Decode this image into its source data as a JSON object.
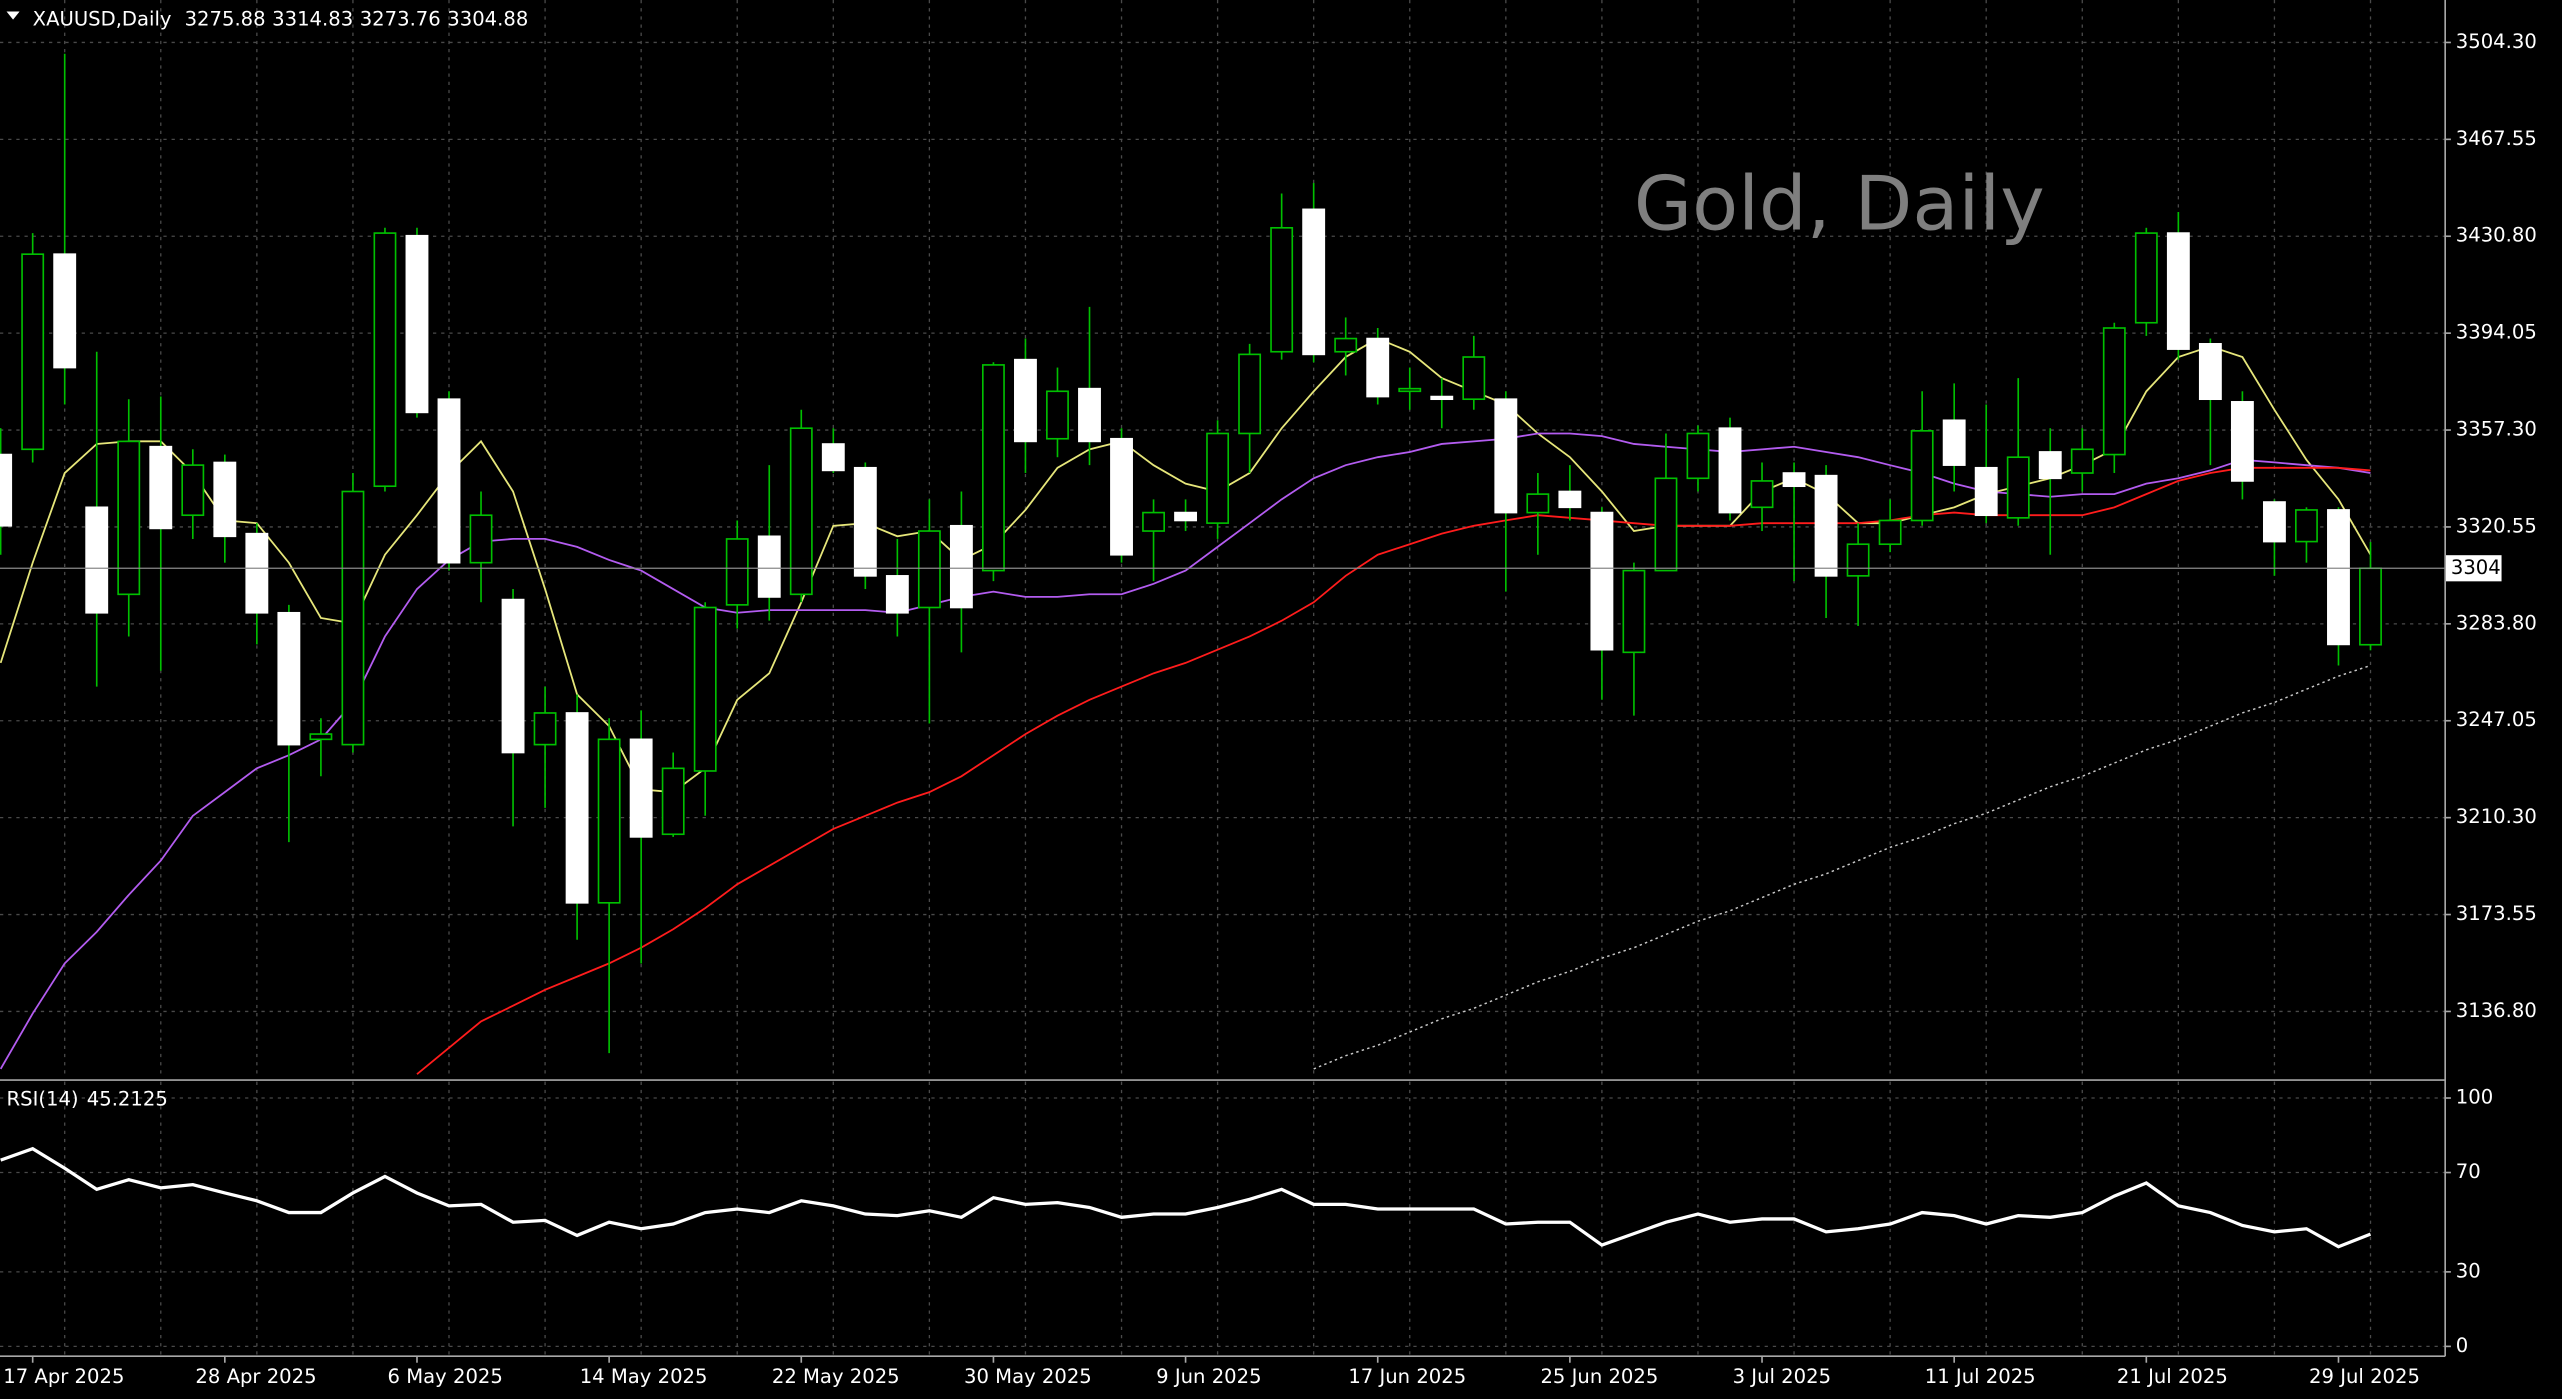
{
  "chart_data": [
    {
      "type": "candlestick",
      "title": "XAUUSD,Daily",
      "watermark": "Gold, Daily",
      "categories": [
        null,
        "17 Apr 2025",
        null,
        null,
        null,
        null,
        null,
        "28 Apr 2025",
        null,
        null,
        null,
        null,
        null,
        "6 May 2025",
        null,
        null,
        null,
        null,
        null,
        "14 May 2025",
        null,
        null,
        null,
        null,
        null,
        "22 May 2025",
        null,
        null,
        null,
        null,
        null,
        "30 May 2025",
        null,
        null,
        null,
        null,
        null,
        "9 Jun 2025",
        null,
        null,
        null,
        null,
        null,
        "17 Jun 2025",
        null,
        null,
        null,
        null,
        null,
        "25 Jun 2025",
        null,
        null,
        null,
        null,
        null,
        "3 Jul 2025",
        null,
        null,
        null,
        null,
        null,
        "11 Jul 2025",
        null,
        null,
        null,
        null,
        null,
        "21 Jul 2025",
        null,
        null,
        null,
        null,
        null,
        "29 Jul 2025",
        null
      ],
      "open": [
        3348,
        3350,
        3424,
        3328,
        3295,
        3351,
        3325,
        3345,
        3318,
        3288,
        3240,
        3238,
        3336,
        3431,
        3369,
        3307,
        3293,
        3238,
        3250,
        3178,
        3240,
        3204,
        3228,
        3291,
        3317,
        3295,
        3352,
        3343,
        3302,
        3290,
        3321,
        3304,
        3384,
        3354,
        3373,
        3354,
        3319,
        3326,
        3322,
        3356,
        3387,
        3441,
        3387,
        3392,
        3372,
        3370,
        3369,
        3369,
        3326,
        3334,
        3326,
        3273,
        3304,
        3339,
        3358,
        3328,
        3341,
        3340,
        3302,
        3314,
        3323,
        3361,
        3343,
        3324,
        3349,
        3341,
        3348,
        3398,
        3432,
        3390,
        3368,
        3330,
        3315,
        3327,
        3275.88
      ],
      "high": [
        3358,
        3432,
        3500,
        3387,
        3369,
        3370,
        3350,
        3348,
        3322,
        3291,
        3248,
        3341,
        3434,
        3434,
        3372,
        3334,
        3297,
        3260,
        3257,
        3248,
        3251,
        3235,
        3292,
        3323,
        3344,
        3365,
        3358,
        3345,
        3316,
        3331,
        3334,
        3383,
        3392,
        3381,
        3404,
        3358,
        3331,
        3331,
        3361,
        3390,
        3447,
        3451,
        3400,
        3396,
        3381,
        3377,
        3393,
        3372,
        3341,
        3344,
        3328,
        3307,
        3356,
        3359,
        3362,
        3345,
        3345,
        3344,
        3322,
        3331,
        3372,
        3375,
        3367,
        3377,
        3358,
        3358,
        3398,
        3434,
        3440,
        3392,
        3372,
        3331,
        3328,
        3328,
        3314.83
      ],
      "low": [
        3310,
        3345,
        3367,
        3260,
        3279,
        3266,
        3316,
        3307,
        3276,
        3201,
        3226,
        3235,
        3334,
        3362,
        3304,
        3292,
        3207,
        3214,
        3164,
        3121,
        3155,
        3203,
        3211,
        3282,
        3285,
        3292,
        3341,
        3297,
        3279,
        3246,
        3273,
        3300,
        3341,
        3347,
        3344,
        3307,
        3300,
        3319,
        3316,
        3341,
        3384,
        3383,
        3378,
        3367,
        3365,
        3358,
        3365,
        3296,
        3310,
        3323,
        3255,
        3249,
        3304,
        3334,
        3323,
        3319,
        3300,
        3286,
        3283,
        3311,
        3321,
        3334,
        3322,
        3321,
        3310,
        3334,
        3341,
        3393,
        3384,
        3344,
        3331,
        3302,
        3307,
        3268,
        3273.76
      ],
      "close": [
        3321,
        3424,
        3381,
        3288,
        3353,
        3320,
        3344,
        3317,
        3288,
        3238,
        3242,
        3334,
        3432,
        3364,
        3307,
        3325,
        3235,
        3250,
        3178,
        3240,
        3203,
        3229,
        3290,
        3316,
        3294,
        3358,
        3342,
        3302,
        3288,
        3319,
        3290,
        3382,
        3353,
        3372,
        3353,
        3310,
        3326,
        3323,
        3356,
        3386,
        3434,
        3386,
        3392,
        3370,
        3373,
        3369,
        3385,
        3326,
        3333,
        3328,
        3274,
        3304,
        3339,
        3356,
        3326,
        3338,
        3336,
        3302,
        3314,
        3323,
        3357,
        3344,
        3325,
        3347,
        3339,
        3350,
        3396,
        3432,
        3388,
        3369,
        3338,
        3315,
        3327,
        3276,
        3304.88
      ],
      "up_color": "#00c000",
      "down_color": "#ffffff",
      "wick_color": "#00c000",
      "series": [
        {
          "color": "#e6e67a",
          "style": "solid",
          "values": [
            3269,
            3307,
            3341,
            3352,
            3353,
            3353,
            3341,
            3323,
            3322,
            3307,
            3286,
            3284,
            3310,
            3325,
            3341,
            3353,
            3334,
            3297,
            3257,
            3245,
            3221,
            3220,
            3229,
            3255,
            3265,
            3292,
            3321,
            3322,
            3317,
            3319,
            3308,
            3314,
            3327,
            3343,
            3350,
            3353,
            3344,
            3337,
            3334,
            3341,
            3358,
            3372,
            3385,
            3392,
            3387,
            3377,
            3372,
            3367,
            3356,
            3347,
            3334,
            3319,
            3321,
            3321,
            3321,
            3334,
            3339,
            3333,
            3322,
            3322,
            3325,
            3328,
            3333,
            3336,
            3339,
            3344,
            3350,
            3372,
            3385,
            3389,
            3385,
            3365,
            3346,
            3331,
            3310
          ]
        },
        {
          "color": "#b35cf0",
          "style": "solid",
          "values": [
            3115,
            3136,
            3155,
            3167,
            3181,
            3194,
            3211,
            3220,
            3229,
            3234,
            3240,
            3254,
            3279,
            3297,
            3308,
            3315,
            3316,
            3316,
            3313,
            3308,
            3304,
            3297,
            3290,
            3288,
            3289,
            3289,
            3289,
            3289,
            3288,
            3291,
            3294,
            3296,
            3294,
            3294,
            3295,
            3295,
            3299,
            3304,
            3313,
            3322,
            3331,
            3339,
            3344,
            3347,
            3349,
            3352,
            3353,
            3354,
            3356,
            3356,
            3355,
            3352,
            3351,
            3350,
            3349,
            3350,
            3351,
            3349,
            3347,
            3344,
            3341,
            3337,
            3334,
            3333,
            3332,
            3333,
            3333,
            3337,
            3339,
            3342,
            3346,
            3345,
            3344,
            3343,
            3341
          ]
        },
        {
          "color": "#ff1c1c",
          "style": "solid",
          "values": [
            null,
            null,
            null,
            null,
            null,
            null,
            null,
            null,
            null,
            null,
            null,
            null,
            null,
            3113,
            3123,
            3133,
            3139,
            3145,
            3150,
            3155,
            3161,
            3168,
            3176,
            3185,
            3192,
            3199,
            3206,
            3211,
            3216,
            3220,
            3226,
            3234,
            3242,
            3249,
            3255,
            3260,
            3265,
            3269,
            3274,
            3279,
            3285,
            3292,
            3302,
            3310,
            3314,
            3318,
            3321,
            3323,
            3325,
            3324,
            3323,
            3322,
            3321,
            3321,
            3321,
            3322,
            3322,
            3322,
            3322,
            3323,
            3325,
            3326,
            3325,
            3325,
            3325,
            3325,
            3328,
            3333,
            3338,
            3341,
            3343,
            3343,
            3343,
            3343,
            3342
          ]
        },
        {
          "color": "#c8c8c8",
          "style": "dotted",
          "values": [
            null,
            null,
            null,
            null,
            null,
            null,
            null,
            null,
            null,
            null,
            null,
            null,
            null,
            null,
            null,
            null,
            null,
            null,
            null,
            null,
            null,
            null,
            null,
            null,
            null,
            null,
            null,
            null,
            null,
            null,
            null,
            null,
            null,
            null,
            null,
            null,
            null,
            null,
            null,
            null,
            null,
            3115,
            3120,
            3124,
            3129,
            3134,
            3138,
            3143,
            3148,
            3152,
            3157,
            3161,
            3166,
            3171,
            3175,
            3180,
            3185,
            3189,
            3194,
            3199,
            3203,
            3208,
            3212,
            3217,
            3222,
            3226,
            3231,
            3236,
            3240,
            3245,
            3250,
            3254,
            3259,
            3264,
            3268
          ]
        }
      ],
      "ylim": [
        3111.4,
        3520.4
      ],
      "yticks": [
        {
          "value": 3504.3,
          "label": "3504.30"
        },
        3467.55,
        {
          "value": 3430.8,
          "label": "3430.80"
        },
        3394.05,
        {
          "value": 3357.3,
          "label": "3357.30"
        },
        3320.55,
        {
          "value": 3283.8,
          "label": "3283.80"
        },
        3247.05,
        {
          "value": 3210.3,
          "label": "3210.30"
        },
        3173.55,
        {
          "value": 3136.8,
          "label": "3136.80"
        }
      ],
      "grid": true
    },
    {
      "type": "line",
      "title": "RSI(14)",
      "color": "#ffffff",
      "values": [
        75,
        79.6,
        71.7,
        63.2,
        67.1,
        63.8,
        65.1,
        61.8,
        58.6,
        53.9,
        53.9,
        61.8,
        68.4,
        61.8,
        56.6,
        57.2,
        50,
        50.7,
        44.7,
        50,
        47.4,
        49.3,
        53.9,
        55.3,
        53.9,
        58.6,
        56.6,
        53.3,
        52.6,
        54.6,
        52,
        59.9,
        57.2,
        57.9,
        55.9,
        52,
        53.3,
        53.3,
        55.9,
        59.2,
        63.2,
        57.2,
        57.2,
        55.3,
        55.3,
        55.3,
        55.3,
        49.3,
        50,
        50,
        40.8,
        45.4,
        50,
        53.3,
        50,
        51.3,
        51.3,
        46.1,
        47.4,
        49.3,
        53.9,
        52.6,
        49.3,
        52.6,
        52,
        53.9,
        60.5,
        65.8,
        56.6,
        53.9,
        48.7,
        46.1,
        47.4,
        40.1,
        45.2125
      ],
      "ylim": [
        0,
        100
      ],
      "yticks": [
        0,
        30,
        70,
        100
      ],
      "grid": true
    }
  ]
}
